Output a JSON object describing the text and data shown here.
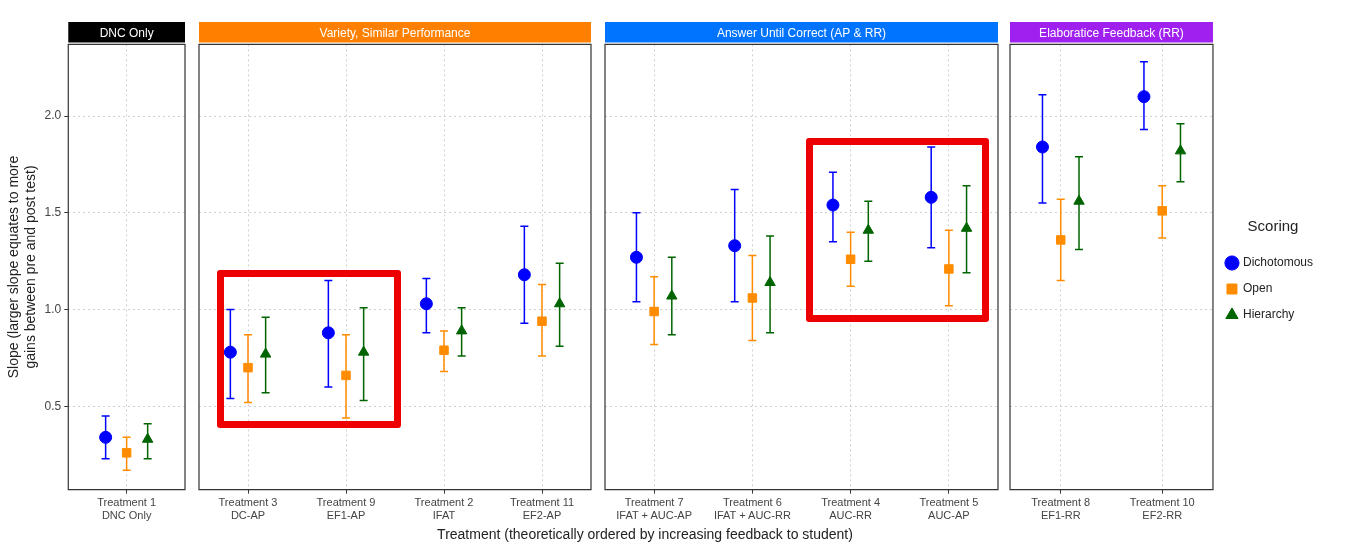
{
  "chart_data": [
    {
      "type": "scatter",
      "title": "DNC Only",
      "ylabel": "Slope (larger slope equates to more\ngains between pre and post test)",
      "categories": [
        "Treatment 1\nDNC Only"
      ],
      "series": [
        {
          "color": "#0000ff",
          "marker": "circle",
          "values": [
            0.34
          ],
          "errors": [
            [
              0.23,
              0.45
            ]
          ]
        },
        {
          "color": "#ff8c00",
          "marker": "square",
          "values": [
            0.26
          ],
          "errors": [
            [
              0.17,
              0.34
            ]
          ]
        },
        {
          "color": "#006400",
          "marker": "triangle",
          "values": [
            0.33
          ],
          "errors": [
            [
              0.23,
              0.41
            ]
          ]
        }
      ],
      "ylim": [
        0.07,
        2.37
      ],
      "yticks": [
        {
          "value": 0.5,
          "label": "0.5"
        },
        {
          "value": 1,
          "label": "1.0"
        },
        {
          "value": 1.5,
          "label": "1.5"
        },
        {
          "value": 2,
          "label": "2.0"
        }
      ],
      "grid": true,
      "legend": false
    },
    {
      "type": "scatter",
      "title": "Variety, Similar Performance",
      "categories": [
        "Treatment 3\nDC-AP",
        "Treatment 9\nEF1-AP",
        "Treatment 2\nIFAT",
        "Treatment 11\nEF2-AP"
      ],
      "series": [
        {
          "color": "#0000ff",
          "marker": "circle",
          "values": [
            0.78,
            0.88,
            1.03,
            1.18
          ],
          "errors": [
            [
              0.54,
              1.0
            ],
            [
              0.6,
              1.15
            ],
            [
              0.88,
              1.16
            ],
            [
              0.93,
              1.43
            ]
          ]
        },
        {
          "color": "#ff8c00",
          "marker": "square",
          "values": [
            0.7,
            0.66,
            0.79,
            0.94
          ],
          "errors": [
            [
              0.52,
              0.87
            ],
            [
              0.44,
              0.87
            ],
            [
              0.68,
              0.89
            ],
            [
              0.76,
              1.13
            ]
          ]
        },
        {
          "color": "#006400",
          "marker": "triangle",
          "values": [
            0.77,
            0.78,
            0.89,
            1.03
          ],
          "errors": [
            [
              0.57,
              0.96
            ],
            [
              0.53,
              1.01
            ],
            [
              0.76,
              1.01
            ],
            [
              0.81,
              1.24
            ]
          ]
        }
      ],
      "ylim": [
        0.07,
        2.37
      ],
      "yticks": [
        0.5,
        1,
        1.5,
        2
      ],
      "tick_labels": "x",
      "grid": true,
      "legend": false
    },
    {
      "type": "scatter",
      "title": "Answer Until Correct (AP & RR)",
      "xlabel": "Treatment (theoretically ordered by increasing feedback to student)",
      "categories": [
        "Treatment 7\nIFAT + AUC-AP",
        "Treatment 6\nIFAT + AUC-RR",
        "Treatment 4\nAUC-RR",
        "Treatment 5\nAUC-AP"
      ],
      "series": [
        {
          "color": "#0000ff",
          "marker": "circle",
          "values": [
            1.27,
            1.33,
            1.54,
            1.58
          ],
          "errors": [
            [
              1.04,
              1.5
            ],
            [
              1.04,
              1.62
            ],
            [
              1.35,
              1.71
            ],
            [
              1.32,
              1.84
            ]
          ]
        },
        {
          "color": "#ff8c00",
          "marker": "square",
          "values": [
            0.99,
            1.06,
            1.26,
            1.21
          ],
          "errors": [
            [
              0.82,
              1.17
            ],
            [
              0.84,
              1.28
            ],
            [
              1.12,
              1.4
            ],
            [
              1.02,
              1.41
            ]
          ]
        },
        {
          "color": "#006400",
          "marker": "triangle",
          "values": [
            1.07,
            1.14,
            1.41,
            1.42
          ],
          "errors": [
            [
              0.87,
              1.27
            ],
            [
              0.88,
              1.38
            ],
            [
              1.25,
              1.56
            ],
            [
              1.19,
              1.64
            ]
          ]
        }
      ],
      "ylim": [
        0.07,
        2.37
      ],
      "yticks": [
        0.5,
        1,
        1.5,
        2
      ],
      "tick_labels": "x",
      "grid": true,
      "legend": false
    },
    {
      "type": "scatter",
      "title": "Elaboratice Feedback (RR)",
      "legend_title": "Scoring",
      "categories": [
        "Treatment 8\nEF1-RR",
        "Treatment 10\nEF2-RR"
      ],
      "series": [
        {
          "name": "Dichotomous",
          "color": "#0000ff",
          "marker": "circle",
          "values": [
            1.84,
            2.1
          ],
          "errors": [
            [
              1.55,
              2.11
            ],
            [
              1.93,
              2.28
            ]
          ]
        },
        {
          "name": "Open",
          "color": "#ff8c00",
          "marker": "square",
          "values": [
            1.36,
            1.51
          ],
          "errors": [
            [
              1.15,
              1.57
            ],
            [
              1.37,
              1.64
            ]
          ]
        },
        {
          "name": "Hierarchy",
          "color": "#006400",
          "marker": "triangle",
          "values": [
            1.56,
            1.82
          ],
          "errors": [
            [
              1.31,
              1.79
            ],
            [
              1.66,
              1.96
            ]
          ]
        }
      ],
      "ylim": [
        0.07,
        2.37
      ],
      "yticks": [
        0.5,
        1,
        1.5,
        2
      ],
      "tick_labels": "x",
      "grid": true,
      "legend": "right"
    }
  ]
}
